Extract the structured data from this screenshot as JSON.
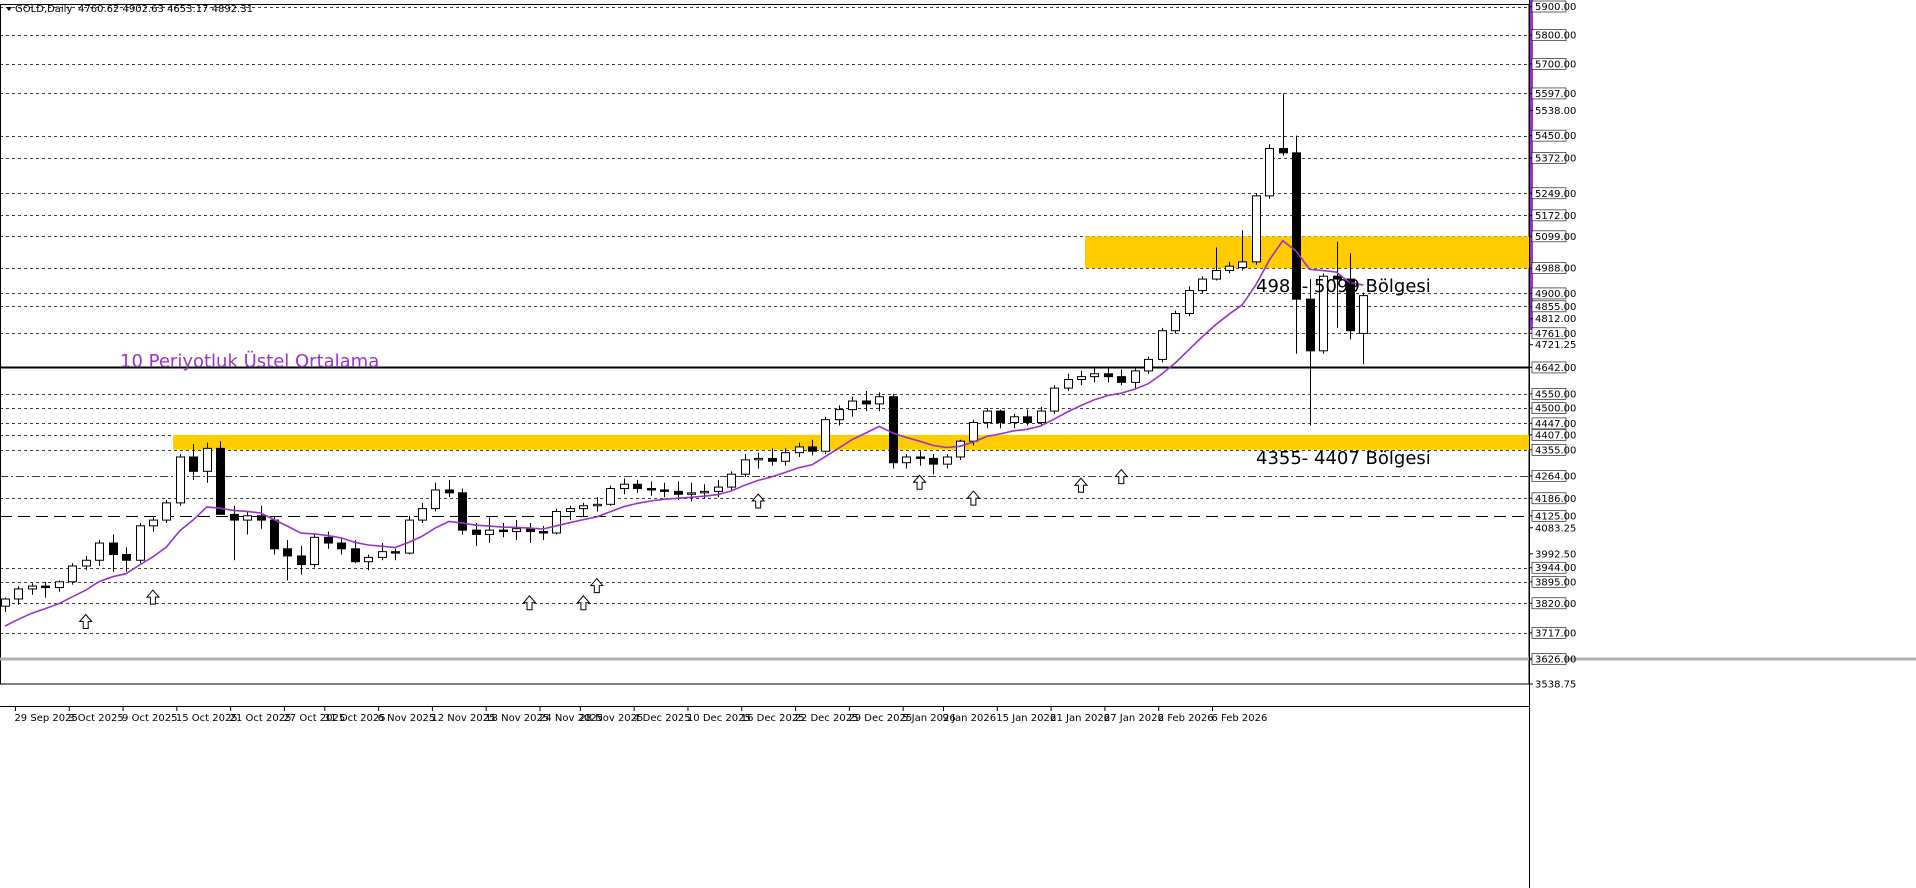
{
  "header": {
    "symbol": "GOLD,Daily",
    "ohlc": "4760.62 4902.63 4653.17 4892.31"
  },
  "colors": {
    "background": "#ffffff",
    "candle_up": "#ffffff",
    "candle_down": "#000000",
    "outline": "#000000",
    "ma": "#9933cc",
    "zone": "#ffcc00",
    "support_line": "#000000",
    "grid": "#000000"
  },
  "annotations": {
    "ma_label": "10 Periyotluk Üstel Ortalama",
    "zone_upper_label": "4988- 5099 Bölgesi",
    "zone_lower_label": "4355- 4407 Bölgesi"
  },
  "chart_data": {
    "type": "candlestick",
    "ylim": [
      3538.75,
      5907
    ],
    "y_ticks": [
      "5900.00",
      "5800.00",
      "5700.00",
      "5597.00",
      "5538.00",
      "5450.00",
      "5372.00",
      "5249.00",
      "5172.00",
      "5099.00",
      "4988.00",
      "4900.00",
      "4855.00",
      "4812.00",
      "4761.00",
      "4721.25",
      "4642.00",
      "4550.00",
      "4500.00",
      "4447.00",
      "4407.00",
      "4355.00",
      "4264.00",
      "4186.00",
      "4125.00",
      "4083.25",
      "3992.50",
      "3944.00",
      "3895.00",
      "3820.00",
      "3717.00",
      "3626.00",
      "3538.75"
    ],
    "highlight_y_ticks": [
      "5900.00",
      "5800.00",
      "5700.00",
      "5597.00",
      "5450.00",
      "5372.00",
      "5249.00",
      "5172.00",
      "5099.00",
      "4988.00",
      "4900.00",
      "4855.00",
      "4761.00",
      "4642.00",
      "4550.00",
      "4500.00",
      "4447.00",
      "4407.00",
      "4355.00",
      "4264.00",
      "4186.00",
      "4125.00",
      "3944.00",
      "3895.00",
      "3820.00",
      "3717.00",
      "3626.00"
    ],
    "horizontal_levels": [
      5900,
      5800,
      5700,
      5597,
      5450,
      5372,
      5249,
      5172,
      5099,
      4988,
      4900,
      4855,
      4761,
      4550,
      4500,
      4447,
      4407,
      4355,
      4264,
      4186,
      3944,
      3895,
      3820,
      3717
    ],
    "dash_dot_level": 4264,
    "long_dash_level": 4125,
    "support_level": 4642,
    "bottom_level": 3626,
    "zones": [
      {
        "from": 4988,
        "to": 5099,
        "start": "20 Jan 2026"
      },
      {
        "from": 4355,
        "to": 4407,
        "start": "14 Oct 2025"
      }
    ],
    "x_labels": [
      "29 Sep 2025",
      "3 Oct 2025",
      "9 Oct 2025",
      "15 Oct 2025",
      "21 Oct 2025",
      "27 Oct 2025",
      "31 Oct 2025",
      "6 Nov 2025",
      "12 Nov 2025",
      "18 Nov 2025",
      "24 Nov 2025",
      "28 Nov 2025",
      "4 Dec 2025",
      "10 Dec 2025",
      "16 Dec 2025",
      "22 Dec 2025",
      "29 Dec 2025",
      "5 Jan 2026",
      "9 Jan 2026",
      "15 Jan 2026",
      "21 Jan 2026",
      "27 Jan 2026",
      "2 Feb 2026",
      "6 Feb 2026"
    ],
    "x_label_index": [
      1,
      5,
      9,
      13,
      17,
      21,
      24,
      28,
      32,
      36,
      40,
      43,
      47,
      51,
      55,
      59,
      63,
      67,
      70,
      74,
      78,
      82,
      86,
      90
    ],
    "candles": [
      {
        "o": 3810,
        "h": 3840,
        "l": 3790,
        "c": 3835
      },
      {
        "o": 3835,
        "h": 3880,
        "l": 3815,
        "c": 3870
      },
      {
        "o": 3870,
        "h": 3890,
        "l": 3850,
        "c": 3880
      },
      {
        "o": 3880,
        "h": 3895,
        "l": 3840,
        "c": 3875
      },
      {
        "o": 3875,
        "h": 3900,
        "l": 3860,
        "c": 3895
      },
      {
        "o": 3895,
        "h": 3960,
        "l": 3885,
        "c": 3950
      },
      {
        "o": 3950,
        "h": 3985,
        "l": 3935,
        "c": 3970
      },
      {
        "o": 3970,
        "h": 4040,
        "l": 3950,
        "c": 4030
      },
      {
        "o": 4030,
        "h": 4060,
        "l": 3930,
        "c": 3990
      },
      {
        "o": 3990,
        "h": 4015,
        "l": 3930,
        "c": 3970
      },
      {
        "o": 3970,
        "h": 4100,
        "l": 3960,
        "c": 4090
      },
      {
        "o": 4090,
        "h": 4120,
        "l": 4070,
        "c": 4110
      },
      {
        "o": 4110,
        "h": 4180,
        "l": 4100,
        "c": 4170
      },
      {
        "o": 4170,
        "h": 4340,
        "l": 4160,
        "c": 4330
      },
      {
        "o": 4330,
        "h": 4375,
        "l": 4250,
        "c": 4280
      },
      {
        "o": 4280,
        "h": 4380,
        "l": 4240,
        "c": 4360
      },
      {
        "o": 4360,
        "h": 4385,
        "l": 4150,
        "c": 4130
      },
      {
        "o": 4130,
        "h": 4160,
        "l": 3970,
        "c": 4110
      },
      {
        "o": 4110,
        "h": 4140,
        "l": 4060,
        "c": 4125
      },
      {
        "o": 4125,
        "h": 4160,
        "l": 4080,
        "c": 4110
      },
      {
        "o": 4110,
        "h": 4125,
        "l": 3990,
        "c": 4010
      },
      {
        "o": 4010,
        "h": 4040,
        "l": 3900,
        "c": 3985
      },
      {
        "o": 3985,
        "h": 4020,
        "l": 3920,
        "c": 3955
      },
      {
        "o": 3955,
        "h": 4060,
        "l": 3945,
        "c": 4050
      },
      {
        "o": 4050,
        "h": 4070,
        "l": 4010,
        "c": 4030
      },
      {
        "o": 4030,
        "h": 4045,
        "l": 3990,
        "c": 4010
      },
      {
        "o": 4010,
        "h": 4040,
        "l": 3960,
        "c": 3965
      },
      {
        "o": 3965,
        "h": 3990,
        "l": 3935,
        "c": 3980
      },
      {
        "o": 3980,
        "h": 4030,
        "l": 3970,
        "c": 4000
      },
      {
        "o": 4000,
        "h": 4010,
        "l": 3970,
        "c": 3995
      },
      {
        "o": 3995,
        "h": 4125,
        "l": 3990,
        "c": 4110
      },
      {
        "o": 4110,
        "h": 4170,
        "l": 4100,
        "c": 4150
      },
      {
        "o": 4150,
        "h": 4240,
        "l": 4140,
        "c": 4215
      },
      {
        "o": 4215,
        "h": 4250,
        "l": 4190,
        "c": 4205
      },
      {
        "o": 4205,
        "h": 4220,
        "l": 4060,
        "c": 4075
      },
      {
        "o": 4075,
        "h": 4100,
        "l": 4020,
        "c": 4060
      },
      {
        "o": 4060,
        "h": 4120,
        "l": 4030,
        "c": 4075
      },
      {
        "o": 4075,
        "h": 4100,
        "l": 4050,
        "c": 4070
      },
      {
        "o": 4070,
        "h": 4110,
        "l": 4040,
        "c": 4080
      },
      {
        "o": 4080,
        "h": 4100,
        "l": 4030,
        "c": 4070
      },
      {
        "o": 4070,
        "h": 4090,
        "l": 4040,
        "c": 4065
      },
      {
        "o": 4065,
        "h": 4150,
        "l": 4060,
        "c": 4140
      },
      {
        "o": 4140,
        "h": 4160,
        "l": 4110,
        "c": 4150
      },
      {
        "o": 4150,
        "h": 4170,
        "l": 4120,
        "c": 4160
      },
      {
        "o": 4160,
        "h": 4190,
        "l": 4140,
        "c": 4165
      },
      {
        "o": 4165,
        "h": 4230,
        "l": 4160,
        "c": 4220
      },
      {
        "o": 4220,
        "h": 4255,
        "l": 4200,
        "c": 4235
      },
      {
        "o": 4235,
        "h": 4250,
        "l": 4205,
        "c": 4220
      },
      {
        "o": 4220,
        "h": 4245,
        "l": 4195,
        "c": 4215
      },
      {
        "o": 4215,
        "h": 4240,
        "l": 4190,
        "c": 4210
      },
      {
        "o": 4210,
        "h": 4245,
        "l": 4180,
        "c": 4200
      },
      {
        "o": 4200,
        "h": 4240,
        "l": 4175,
        "c": 4205
      },
      {
        "o": 4205,
        "h": 4235,
        "l": 4185,
        "c": 4210
      },
      {
        "o": 4210,
        "h": 4250,
        "l": 4190,
        "c": 4225
      },
      {
        "o": 4225,
        "h": 4280,
        "l": 4215,
        "c": 4270
      },
      {
        "o": 4270,
        "h": 4340,
        "l": 4260,
        "c": 4320
      },
      {
        "o": 4320,
        "h": 4345,
        "l": 4290,
        "c": 4325
      },
      {
        "o": 4325,
        "h": 4360,
        "l": 4300,
        "c": 4315
      },
      {
        "o": 4315,
        "h": 4360,
        "l": 4300,
        "c": 4345
      },
      {
        "o": 4345,
        "h": 4380,
        "l": 4330,
        "c": 4365
      },
      {
        "o": 4365,
        "h": 4390,
        "l": 4335,
        "c": 4350
      },
      {
        "o": 4350,
        "h": 4470,
        "l": 4340,
        "c": 4460
      },
      {
        "o": 4460,
        "h": 4510,
        "l": 4440,
        "c": 4495
      },
      {
        "o": 4495,
        "h": 4540,
        "l": 4470,
        "c": 4525
      },
      {
        "o": 4525,
        "h": 4560,
        "l": 4490,
        "c": 4515
      },
      {
        "o": 4515,
        "h": 4555,
        "l": 4490,
        "c": 4540
      },
      {
        "o": 4540,
        "h": 4550,
        "l": 4290,
        "c": 4310
      },
      {
        "o": 4310,
        "h": 4340,
        "l": 4290,
        "c": 4330
      },
      {
        "o": 4330,
        "h": 4350,
        "l": 4300,
        "c": 4325
      },
      {
        "o": 4325,
        "h": 4340,
        "l": 4270,
        "c": 4305
      },
      {
        "o": 4305,
        "h": 4340,
        "l": 4290,
        "c": 4330
      },
      {
        "o": 4330,
        "h": 4390,
        "l": 4320,
        "c": 4385
      },
      {
        "o": 4385,
        "h": 4460,
        "l": 4370,
        "c": 4450
      },
      {
        "o": 4450,
        "h": 4500,
        "l": 4430,
        "c": 4490
      },
      {
        "o": 4490,
        "h": 4495,
        "l": 4430,
        "c": 4450
      },
      {
        "o": 4450,
        "h": 4480,
        "l": 4430,
        "c": 4470
      },
      {
        "o": 4470,
        "h": 4495,
        "l": 4440,
        "c": 4450
      },
      {
        "o": 4450,
        "h": 4505,
        "l": 4440,
        "c": 4490
      },
      {
        "o": 4490,
        "h": 4580,
        "l": 4480,
        "c": 4570
      },
      {
        "o": 4570,
        "h": 4620,
        "l": 4560,
        "c": 4600
      },
      {
        "o": 4600,
        "h": 4630,
        "l": 4580,
        "c": 4610
      },
      {
        "o": 4610,
        "h": 4640,
        "l": 4590,
        "c": 4620
      },
      {
        "o": 4620,
        "h": 4640,
        "l": 4590,
        "c": 4610
      },
      {
        "o": 4610,
        "h": 4635,
        "l": 4580,
        "c": 4590
      },
      {
        "o": 4590,
        "h": 4640,
        "l": 4570,
        "c": 4630
      },
      {
        "o": 4630,
        "h": 4680,
        "l": 4620,
        "c": 4670
      },
      {
        "o": 4670,
        "h": 4780,
        "l": 4660,
        "c": 4770
      },
      {
        "o": 4770,
        "h": 4840,
        "l": 4760,
        "c": 4830
      },
      {
        "o": 4830,
        "h": 4925,
        "l": 4820,
        "c": 4910
      },
      {
        "o": 4910,
        "h": 4960,
        "l": 4900,
        "c": 4950
      },
      {
        "o": 4950,
        "h": 5060,
        "l": 4945,
        "c": 4980
      },
      {
        "o": 4980,
        "h": 5010,
        "l": 4970,
        "c": 4995
      },
      {
        "o": 4990,
        "h": 5120,
        "l": 4980,
        "c": 5010
      },
      {
        "o": 5010,
        "h": 5250,
        "l": 5000,
        "c": 5240
      },
      {
        "o": 5240,
        "h": 5420,
        "l": 5230,
        "c": 5405
      },
      {
        "o": 5405,
        "h": 5597,
        "l": 5380,
        "c": 5390
      },
      {
        "o": 5390,
        "h": 5450,
        "l": 4690,
        "c": 4880
      },
      {
        "o": 4880,
        "h": 4950,
        "l": 4440,
        "c": 4700
      },
      {
        "o": 4700,
        "h": 4970,
        "l": 4690,
        "c": 4960
      },
      {
        "o": 4960,
        "h": 5080,
        "l": 4780,
        "c": 4950
      },
      {
        "o": 4950,
        "h": 5040,
        "l": 4740,
        "c": 4770
      },
      {
        "o": 4760.62,
        "h": 4902.63,
        "l": 4653.17,
        "c": 4892.31
      }
    ],
    "ma_start": 3720,
    "up_arrows": [
      6,
      11,
      39,
      43,
      44,
      56,
      68,
      72,
      80,
      83
    ],
    "up_arrow_values": [
      3795,
      3880,
      3860,
      3860,
      3920,
      4215,
      4280,
      4225,
      4270,
      4300
    ]
  }
}
